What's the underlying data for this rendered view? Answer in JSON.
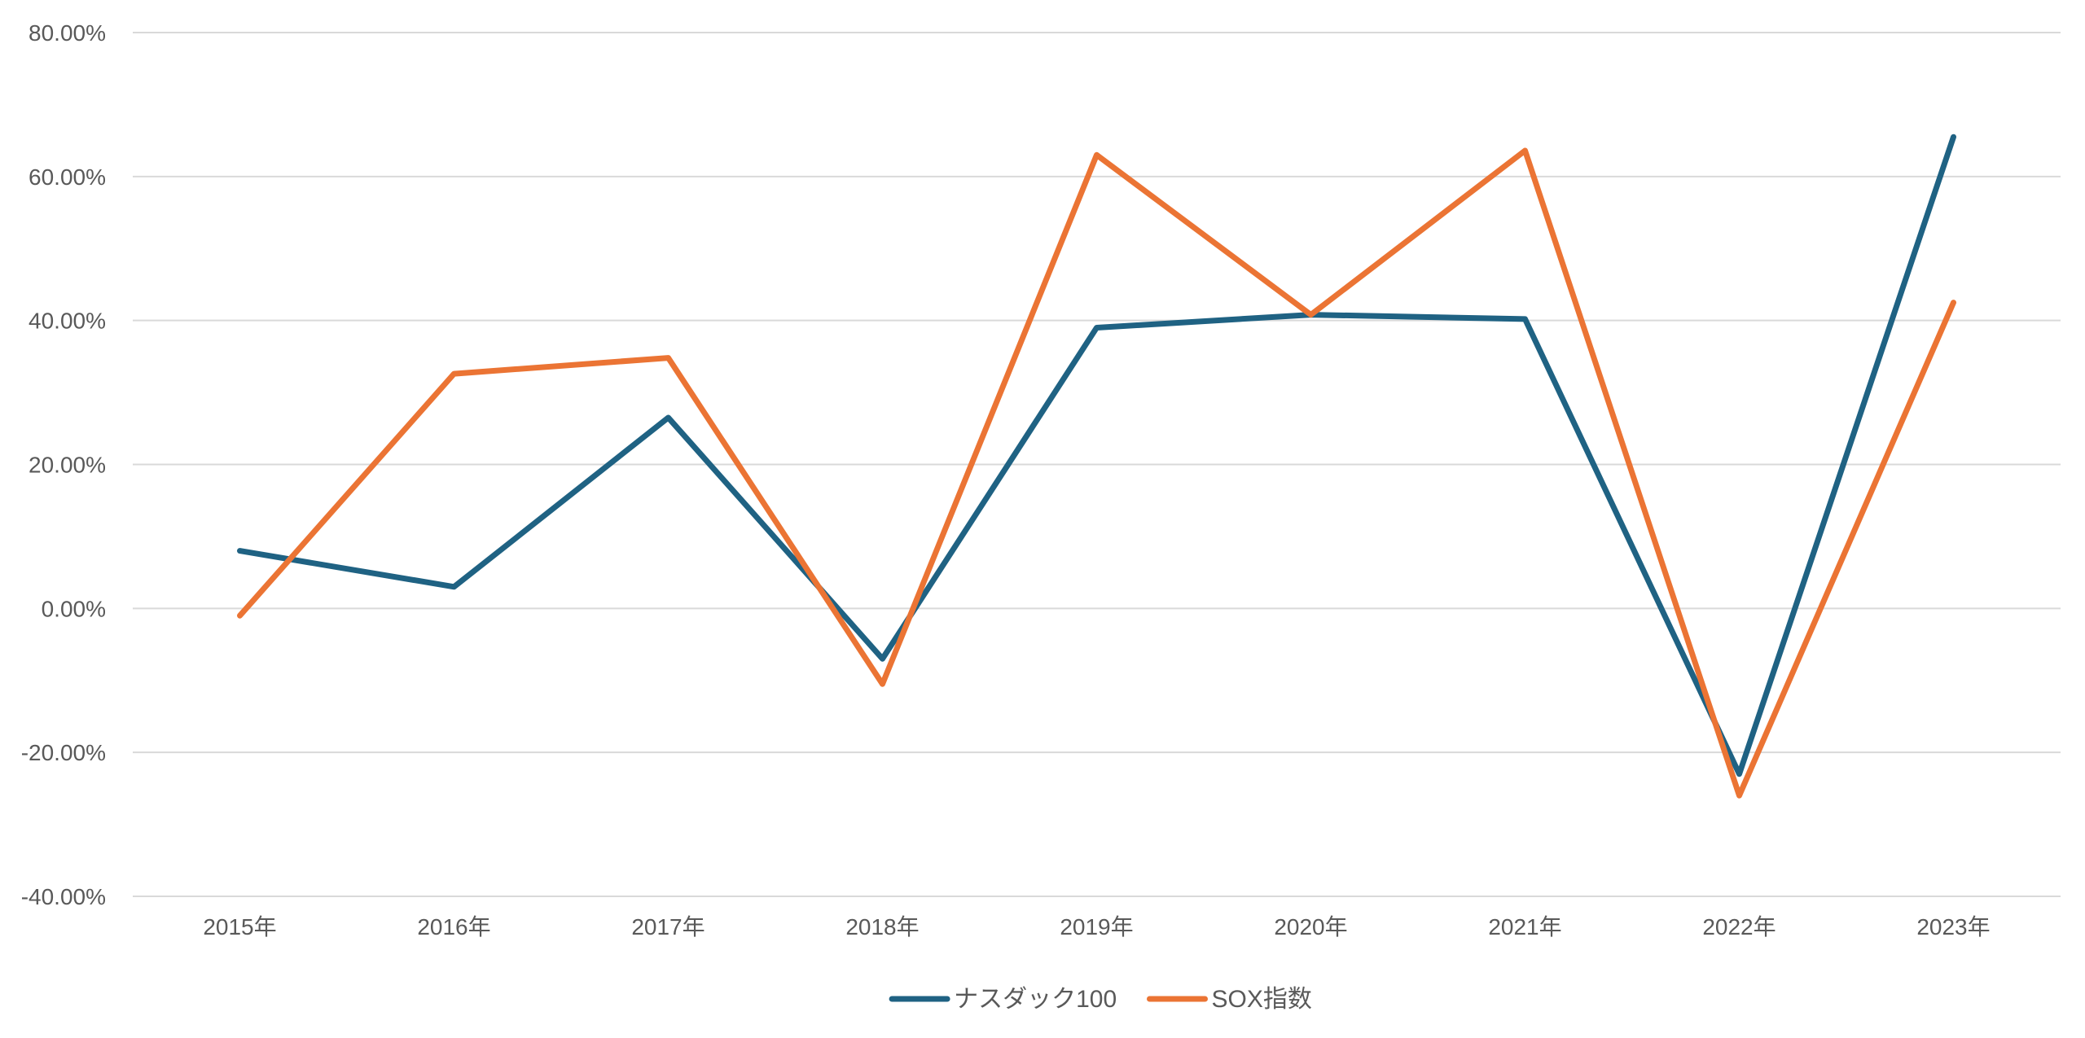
{
  "chart_data": {
    "type": "line",
    "title": "",
    "xlabel": "",
    "ylabel": "",
    "categories": [
      "2015年",
      "2016年",
      "2017年",
      "2018年",
      "2019年",
      "2020年",
      "2021年",
      "2022年",
      "2023年"
    ],
    "ylim": [
      -0.4,
      0.8
    ],
    "yticks": [
      0.8,
      0.6,
      0.4,
      0.2,
      0.0,
      -0.2,
      -0.4
    ],
    "ytick_labels": [
      "80.00%",
      "60.00%",
      "40.00%",
      "20.00%",
      "0.00%",
      "-20.00%",
      "-40.00%"
    ],
    "grid": true,
    "legend_position": "bottom",
    "series": [
      {
        "name": "ナスダック100",
        "color": "#1f6283",
        "values": [
          0.08,
          0.03,
          0.265,
          -0.07,
          0.39,
          0.408,
          0.402,
          -0.23,
          0.655
        ]
      },
      {
        "name": "SOX指数",
        "color": "#eb7434",
        "values": [
          -0.01,
          0.326,
          0.348,
          -0.105,
          0.63,
          0.408,
          0.636,
          -0.26,
          0.425
        ]
      }
    ]
  }
}
